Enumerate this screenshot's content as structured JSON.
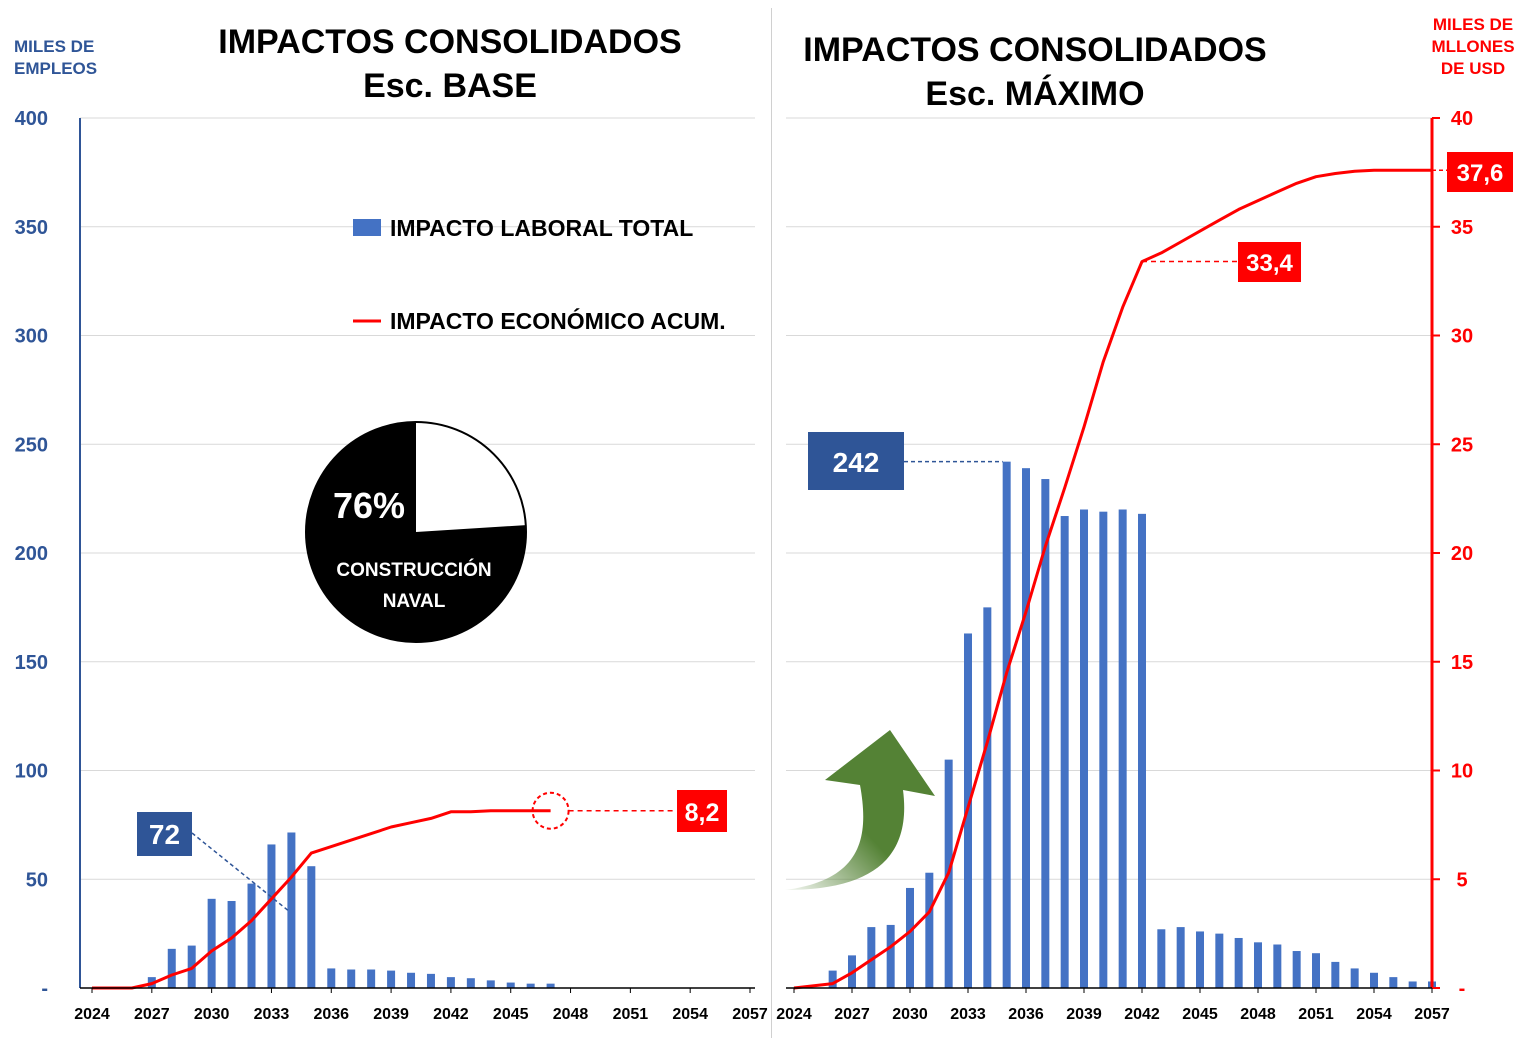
{
  "colors": {
    "bar": "#4472C4",
    "line": "#FF0000",
    "axis_left": "#2F5597",
    "callout_blue": "#2F5597",
    "callout_red": "#FF0000",
    "pie_dark": "#000000",
    "arrow": "#548235"
  },
  "left_axis": {
    "title_line1": "MILES DE",
    "title_line2": "EMPLEOS",
    "ticks": [
      "-",
      "50",
      "100",
      "150",
      "200",
      "250",
      "300",
      "350",
      "400"
    ]
  },
  "right_axis": {
    "title_line1": "MILES DE",
    "title_line2": "MLLONES",
    "title_line3": "DE USD",
    "ticks": [
      "-",
      "5",
      "10",
      "15",
      "20",
      "25",
      "30",
      "35",
      "40"
    ]
  },
  "legend": {
    "bars": "IMPACTO LABORAL TOTAL",
    "line": "IMPACTO ECONÓMICO ACUM."
  },
  "pie": {
    "percent_label": "76%",
    "caption_line1": "CONSTRUCCIÓN",
    "caption_line2": "NAVAL"
  },
  "chart_data": [
    {
      "type": "bar+line",
      "title": "IMPACTOS CONSOLIDADOS",
      "subtitle": "Esc. BASE",
      "x_tick_labels": [
        "2024",
        "2027",
        "2030",
        "2033",
        "2036",
        "2039",
        "2042",
        "2045",
        "2048",
        "2051",
        "2054",
        "2057"
      ],
      "bar_years": [
        2027,
        2028,
        2029,
        2030,
        2031,
        2032,
        2033,
        2034,
        2035,
        2036,
        2037,
        2038,
        2039,
        2040,
        2041,
        2042,
        2043,
        2044,
        2045,
        2046,
        2047
      ],
      "bar_values": [
        5,
        18,
        19.5,
        41,
        40,
        48,
        66,
        71.5,
        56,
        9,
        8.5,
        8.5,
        8,
        7,
        6.5,
        5,
        4.5,
        3.5,
        2.5,
        2,
        2
      ],
      "line_years": [
        2024,
        2026,
        2027,
        2028,
        2029,
        2030,
        2031,
        2032,
        2033,
        2034,
        2035,
        2036,
        2037,
        2038,
        2039,
        2040,
        2041,
        2042,
        2043,
        2044,
        2045,
        2046,
        2047
      ],
      "line_values": [
        0,
        0,
        0.2,
        0.6,
        0.9,
        1.7,
        2.3,
        3.1,
        4.1,
        5.1,
        6.2,
        6.5,
        6.8,
        7.1,
        7.4,
        7.6,
        7.8,
        8.1,
        8.1,
        8.15,
        8.15,
        8.15,
        8.15
      ],
      "y_left_lim": [
        0,
        400
      ],
      "y_right_lim": [
        0,
        40
      ],
      "bar_callout": "72",
      "line_callout": "8,2"
    },
    {
      "type": "bar+line",
      "title": "IMPACTOS CONSOLIDADOS",
      "subtitle": "Esc. MÁXIMO",
      "x_tick_labels": [
        "2024",
        "2027",
        "2030",
        "2033",
        "2036",
        "2039",
        "2042",
        "2045",
        "2048",
        "2051",
        "2054",
        "2057"
      ],
      "bar_years": [
        2026,
        2027,
        2028,
        2029,
        2030,
        2031,
        2032,
        2033,
        2034,
        2035,
        2036,
        2037,
        2038,
        2039,
        2040,
        2041,
        2042,
        2043,
        2044,
        2045,
        2046,
        2047,
        2048,
        2049,
        2050,
        2051,
        2052,
        2053,
        2054,
        2055,
        2056,
        2057
      ],
      "bar_values": [
        8,
        15,
        28,
        29,
        46,
        53,
        105,
        163,
        175,
        242,
        239,
        234,
        217,
        220,
        219,
        220,
        218,
        27,
        28,
        26,
        25,
        23,
        21,
        20,
        17,
        16,
        12,
        9,
        7,
        5,
        3,
        3
      ],
      "line_years": [
        2024,
        2026,
        2027,
        2028,
        2029,
        2030,
        2031,
        2032,
        2033,
        2034,
        2035,
        2036,
        2037,
        2038,
        2039,
        2040,
        2041,
        2042,
        2043,
        2044,
        2045,
        2046,
        2047,
        2048,
        2049,
        2050,
        2051,
        2052,
        2053,
        2054,
        2055,
        2056,
        2057
      ],
      "line_values": [
        0,
        0.2,
        0.7,
        1.3,
        1.9,
        2.6,
        3.5,
        5.3,
        8.3,
        11.3,
        14.5,
        17.3,
        20.3,
        23.0,
        25.8,
        28.8,
        31.3,
        33.4,
        33.8,
        34.3,
        34.8,
        35.3,
        35.8,
        36.2,
        36.6,
        37.0,
        37.3,
        37.45,
        37.55,
        37.6,
        37.6,
        37.6,
        37.6
      ],
      "y_left_lim": [
        0,
        400
      ],
      "y_right_lim": [
        0,
        40
      ],
      "bar_callout": "242",
      "line_callout_mid": "33,4",
      "line_callout_end": "37,6"
    }
  ]
}
